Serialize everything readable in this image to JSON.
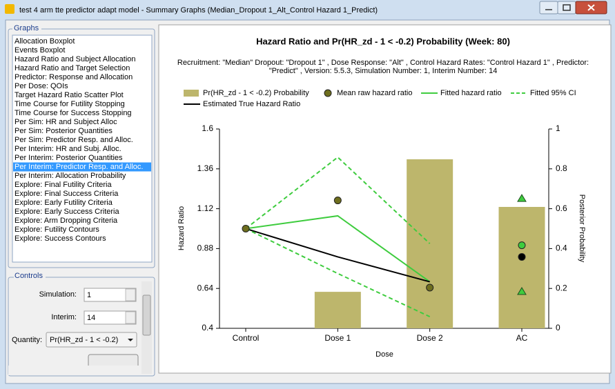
{
  "window": {
    "title": "test 4 arm tte predictor adapt model - Summary Graphs (Median_Dropout 1_Alt_Control Hazard 1_Predict)"
  },
  "graphs_panel": {
    "title": "Graphs",
    "selected": 14,
    "items": [
      "Allocation Boxplot",
      "Events Boxplot",
      "Hazard Ratio and Subject Allocation",
      "Hazard Ratio and Target Selection",
      "Predictor: Response and Allocation",
      "Per Dose: QOIs",
      "Target Hazard Ratio Scatter Plot",
      "Time Course for Futility Stopping",
      "Time Course for Success Stopping",
      "Per Sim: HR and Subject Alloc",
      "Per Sim: Posterior Quantities",
      "Per Sim: Predictor Resp. and Alloc.",
      "Per Interim: HR and Subj. Alloc.",
      "Per Interim: Posterior Quantities",
      "Per Interim: Predictor Resp. and Alloc.",
      "Per Interim: Allocation Probability",
      "Explore: Final Futility Criteria",
      "Explore: Final Success Criteria",
      "Explore: Early Futility Criteria",
      "Explore: Early Success Criteria",
      "Explore: Arm Dropping Criteria",
      "Explore: Futility Contours",
      "Explore: Success Contours"
    ]
  },
  "controls_panel": {
    "title": "Controls",
    "simulation": {
      "label": "Simulation:",
      "value": "1"
    },
    "interim": {
      "label": "Interim:",
      "value": "14"
    },
    "quantity": {
      "label": "Quantity:",
      "value": "Pr(HR_zd - 1 < -0.2)"
    }
  },
  "chart_data": {
    "type": "combo",
    "title": "Hazard Ratio and Pr(HR_zd - 1 < -0.2) Probability (Week: 80)",
    "subtitle": [
      "Recruitment: \"Median\" Dropout: \"Dropout 1\" , Dose Response: \"Alt\" , Control Hazard Rates: \"Control Hazard 1\" , Predictor:",
      "\"Predict\" , Version: 5.5.3, Simulation Number: 1, Interim Number: 14"
    ],
    "x_label": "Dose",
    "y_label": "Hazard Ratio",
    "y2_label": "Posterior Probability",
    "categories": [
      "Control",
      "Dose 1",
      "Dose 2",
      "AC"
    ],
    "ylim": [
      0.4,
      1.6
    ],
    "yticks": [
      0.4,
      0.64,
      0.88,
      1.12,
      1.36,
      1.6
    ],
    "y2lim": [
      0,
      1
    ],
    "y2ticks": [
      0,
      0.2,
      0.4,
      0.6,
      0.8,
      1
    ],
    "series": [
      {
        "name": "Pr(HR_zd - 1 < -0.2) Probability",
        "style": "bar",
        "axis": "y2",
        "color": "#bdb66c",
        "values": [
          null,
          0.183,
          0.848,
          0.609
        ]
      },
      {
        "name": "Mean raw hazard ratio",
        "style": "points",
        "color": "#6e6e1e",
        "values": [
          1.0,
          1.17,
          0.645,
          null
        ]
      },
      {
        "name": "Fitted hazard ratio",
        "style": "line",
        "color": "#3ecc3e",
        "marker": "circle",
        "values": [
          1.0,
          1.077,
          0.68,
          0.9
        ]
      },
      {
        "name": "Fitted 95% CI",
        "style": "dashed-band",
        "color": "#3ecc3e",
        "marker": "triangle",
        "lower": [
          1.0,
          0.73,
          0.47,
          0.62
        ],
        "upper": [
          1.0,
          1.43,
          0.91,
          1.18
        ]
      },
      {
        "name": "Estimated True Hazard Ratio",
        "style": "line",
        "color": "#000000",
        "marker": "circle",
        "values": [
          1.0,
          0.83,
          0.68,
          0.83
        ]
      }
    ]
  }
}
